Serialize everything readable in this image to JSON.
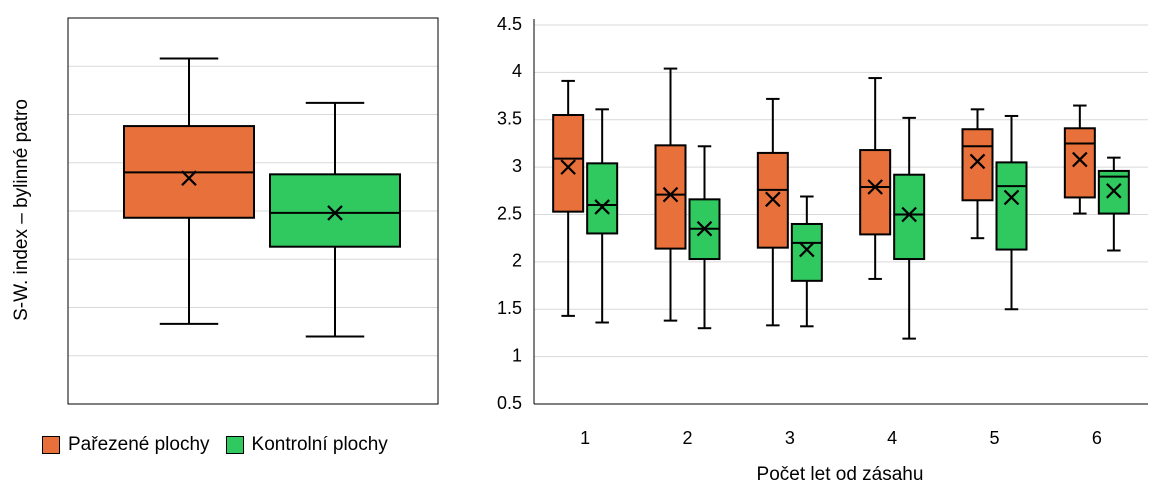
{
  "colors": {
    "pareze": "#E8703A",
    "kontrol": "#2FC95F",
    "grid": "#D9D9D9",
    "frame": "#000000"
  },
  "legend": {
    "pareze_label": "Pařezené plochy",
    "kontrol_label": "Kontrolní plochy"
  },
  "chart_data": [
    {
      "type": "box",
      "title": "",
      "xlabel": "",
      "ylabel": "S-W. index – bylinné patro",
      "ylim": [
        0.5,
        4.5
      ],
      "grid": true,
      "tick_labels_shown": false,
      "series": [
        {
          "name": "Pařezené plochy",
          "color_key": "pareze",
          "boxes": [
            {
              "min": 1.33,
              "q1": 2.43,
              "median": 2.9,
              "q3": 3.38,
              "max": 4.08,
              "mean": 2.84
            }
          ]
        },
        {
          "name": "Kontrolní plochy",
          "color_key": "kontrol",
          "boxes": [
            {
              "min": 1.2,
              "q1": 2.13,
              "median": 2.48,
              "q3": 2.88,
              "max": 3.62,
              "mean": 2.48
            }
          ]
        }
      ]
    },
    {
      "type": "box",
      "title": "",
      "xlabel": "Počet let od zásahu",
      "ylabel": "",
      "ylim": [
        0.5,
        4.5
      ],
      "yticks": [
        "0.5",
        "1",
        "1.5",
        "2",
        "2.5",
        "3",
        "3.5",
        "4",
        "4.5"
      ],
      "categories": [
        "1",
        "2",
        "3",
        "4",
        "5",
        "6"
      ],
      "grid": true,
      "series": [
        {
          "name": "Pařezené plochy",
          "color_key": "pareze",
          "boxes": [
            {
              "min": 1.43,
              "q1": 2.53,
              "median": 3.09,
              "q3": 3.55,
              "max": 3.91,
              "mean": 3.0
            },
            {
              "min": 1.38,
              "q1": 2.14,
              "median": 2.71,
              "q3": 3.23,
              "max": 4.04,
              "mean": 2.71
            },
            {
              "min": 1.33,
              "q1": 2.15,
              "median": 2.76,
              "q3": 3.15,
              "max": 3.72,
              "mean": 2.66
            },
            {
              "min": 1.82,
              "q1": 2.29,
              "median": 2.79,
              "q3": 3.18,
              "max": 3.94,
              "mean": 2.79
            },
            {
              "min": 2.25,
              "q1": 2.65,
              "median": 3.22,
              "q3": 3.4,
              "max": 3.61,
              "mean": 3.06
            },
            {
              "min": 2.51,
              "q1": 2.68,
              "median": 3.25,
              "q3": 3.41,
              "max": 3.65,
              "mean": 3.08
            }
          ]
        },
        {
          "name": "Kontrolní plochy",
          "color_key": "kontrol",
          "boxes": [
            {
              "min": 1.36,
              "q1": 2.3,
              "median": 2.6,
              "q3": 3.04,
              "max": 3.61,
              "mean": 2.58
            },
            {
              "min": 1.3,
              "q1": 2.03,
              "median": 2.35,
              "q3": 2.66,
              "max": 3.22,
              "mean": 2.35
            },
            {
              "min": 1.32,
              "q1": 1.8,
              "median": 2.2,
              "q3": 2.4,
              "max": 2.69,
              "mean": 2.13
            },
            {
              "min": 1.19,
              "q1": 2.03,
              "median": 2.5,
              "q3": 2.92,
              "max": 3.52,
              "mean": 2.5
            },
            {
              "min": 1.5,
              "q1": 2.13,
              "median": 2.8,
              "q3": 3.05,
              "max": 3.54,
              "mean": 2.68
            },
            {
              "min": 2.12,
              "q1": 2.51,
              "median": 2.9,
              "q3": 2.96,
              "max": 3.1,
              "mean": 2.75
            }
          ]
        }
      ]
    }
  ]
}
